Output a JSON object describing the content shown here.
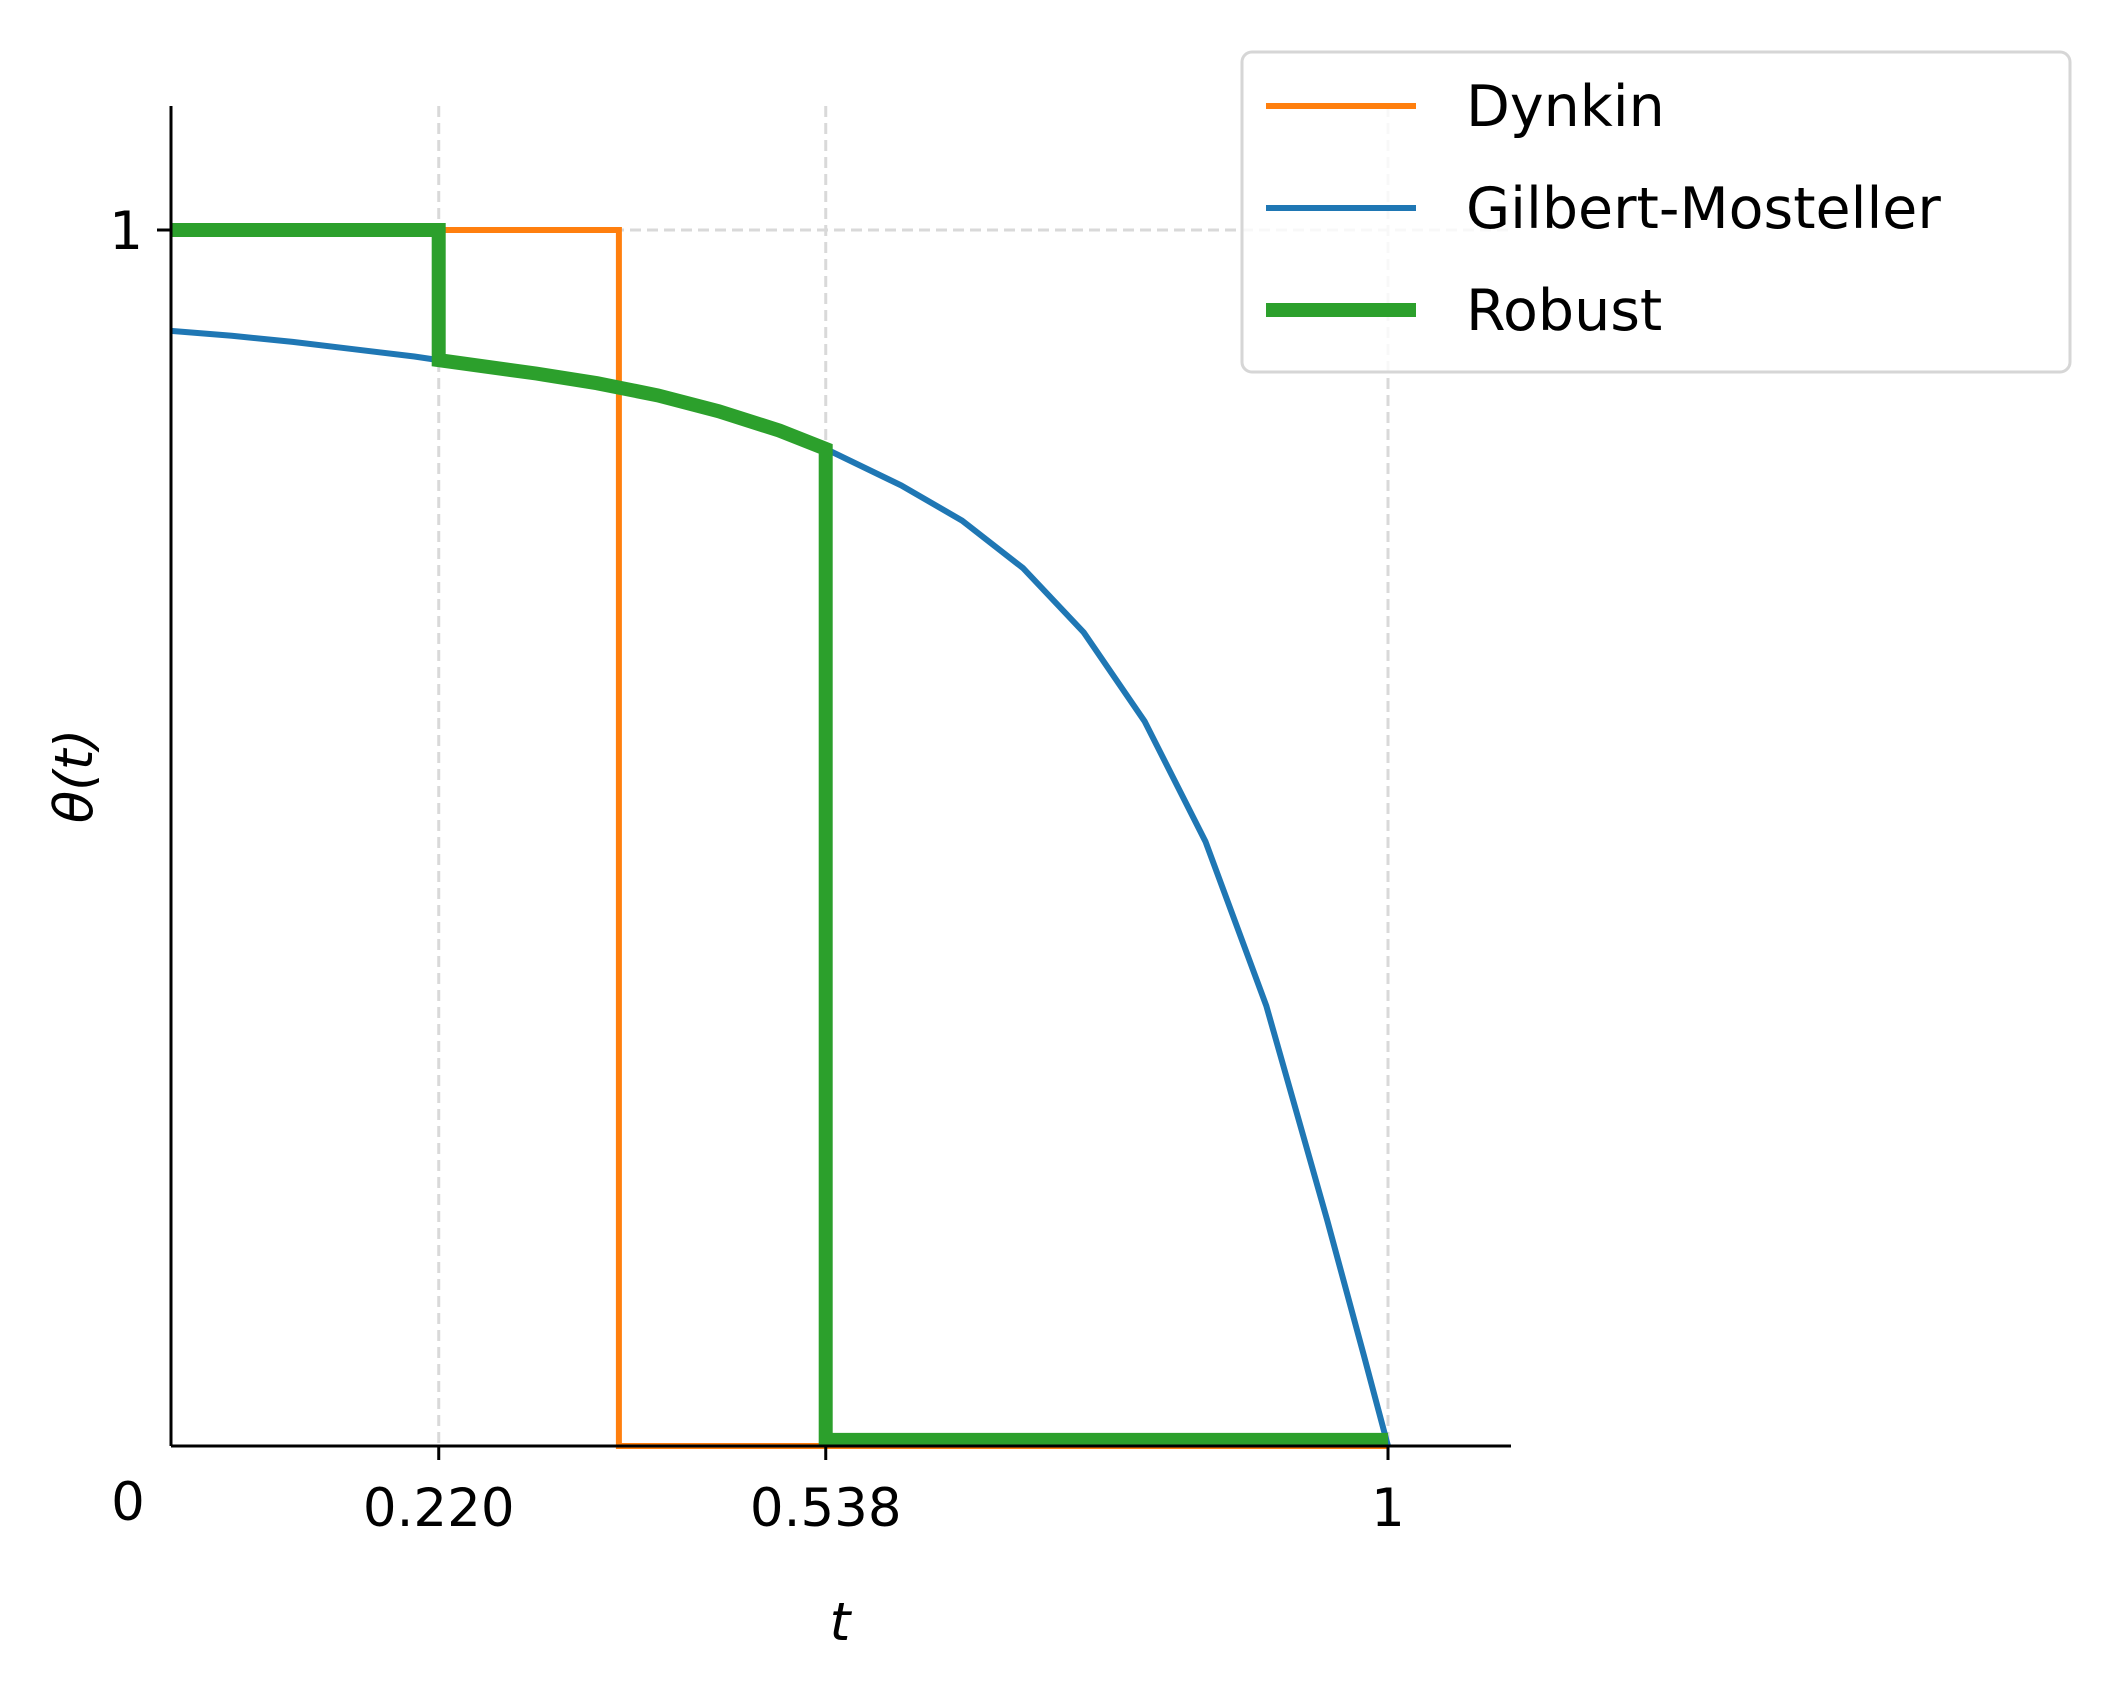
{
  "chart_data": {
    "type": "line",
    "xlabel": "t",
    "ylabel": "θ(t)",
    "xlim": [
      0,
      1.1
    ],
    "ylim": [
      0,
      1.1
    ],
    "xticks": [
      {
        "value": 0.22,
        "label": "0.220"
      },
      {
        "value": 0.538,
        "label": "0.538"
      },
      {
        "value": 1,
        "label": "1"
      }
    ],
    "yticks": [
      {
        "value": 1,
        "label": "1"
      }
    ],
    "origin_label": "0",
    "grid": {
      "style": "dashed",
      "color": "#d9d9d9",
      "x": [
        0.22,
        0.538,
        1
      ],
      "y": [
        1
      ]
    },
    "legend": {
      "position": "top-right",
      "entries": [
        "Dynkin",
        "Gilbert-Mosteller",
        "Robust"
      ]
    },
    "series": [
      {
        "name": "Dynkin",
        "color": "#ff7f0e",
        "points": [
          [
            0,
            1
          ],
          [
            0.368,
            1
          ],
          [
            0.368,
            0
          ],
          [
            1,
            0
          ]
        ]
      },
      {
        "name": "Gilbert-Mosteller",
        "color": "#1f77b4",
        "points": [
          [
            0,
            0.917
          ],
          [
            0.05,
            0.913
          ],
          [
            0.1,
            0.908
          ],
          [
            0.15,
            0.902
          ],
          [
            0.2,
            0.896
          ],
          [
            0.22,
            0.893
          ],
          [
            0.3,
            0.882
          ],
          [
            0.35,
            0.874
          ],
          [
            0.4,
            0.864
          ],
          [
            0.45,
            0.851
          ],
          [
            0.5,
            0.835
          ],
          [
            0.538,
            0.82
          ],
          [
            0.6,
            0.79
          ],
          [
            0.65,
            0.761
          ],
          [
            0.7,
            0.722
          ],
          [
            0.75,
            0.669
          ],
          [
            0.8,
            0.596
          ],
          [
            0.85,
            0.497
          ],
          [
            0.9,
            0.362
          ],
          [
            0.95,
            0.186
          ],
          [
            0.98,
            0.075
          ],
          [
            1,
            0
          ]
        ]
      },
      {
        "name": "Robust",
        "color": "#2ca02c",
        "points": [
          [
            0,
            1
          ],
          [
            0.22,
            1
          ],
          [
            0.22,
            0.893
          ],
          [
            0.3,
            0.882
          ],
          [
            0.35,
            0.874
          ],
          [
            0.4,
            0.864
          ],
          [
            0.45,
            0.851
          ],
          [
            0.5,
            0.835
          ],
          [
            0.538,
            0.82
          ],
          [
            0.538,
            0.005
          ],
          [
            1,
            0.005
          ]
        ]
      }
    ]
  }
}
